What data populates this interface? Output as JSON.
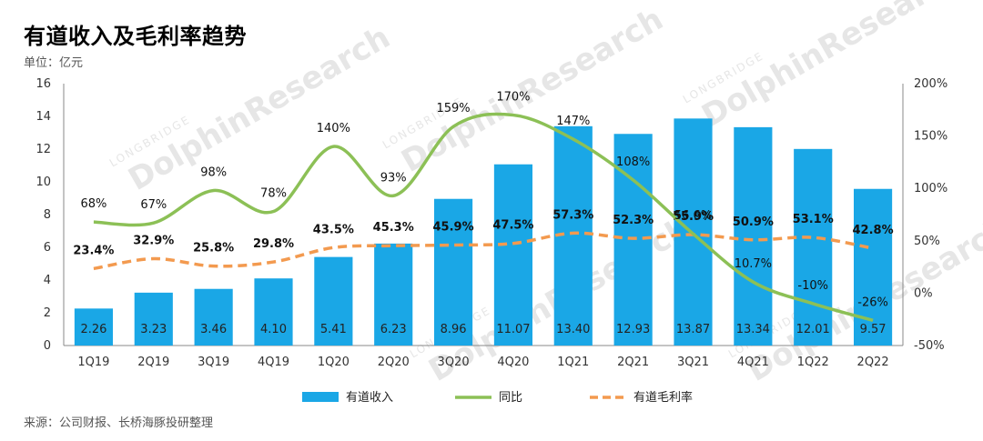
{
  "title": "有道收入及毛利率趋势",
  "unit_label": "单位：亿元",
  "source": "来源：公司财报、长桥海豚投研整理",
  "watermark": {
    "brand": "DolphinResearch",
    "sub": "LONGBRIDGE"
  },
  "colors": {
    "bar": "#1aa7e6",
    "yoy": "#8cc056",
    "gross_margin": "#f39a4f"
  },
  "chart_data": {
    "type": "bar",
    "title": "有道收入及毛利率趋势",
    "categories": [
      "1Q19",
      "2Q19",
      "3Q19",
      "4Q19",
      "1Q20",
      "2Q20",
      "3Q20",
      "4Q20",
      "1Q21",
      "2Q21",
      "3Q21",
      "4Q21",
      "1Q22",
      "2Q22"
    ],
    "left_axis": {
      "min": 0,
      "max": 16,
      "ticks": [
        "0",
        "2",
        "4",
        "6",
        "8",
        "10",
        "12",
        "14",
        "16"
      ]
    },
    "right_axis": {
      "min": -50,
      "max": 200,
      "ticks": [
        "-50%",
        "0%",
        "50%",
        "100%",
        "150%",
        "200%"
      ]
    },
    "series": [
      {
        "name": "有道收入",
        "type": "bar",
        "axis": "left",
        "values": [
          2.26,
          3.23,
          3.46,
          4.1,
          5.41,
          6.23,
          8.96,
          11.07,
          13.4,
          12.93,
          13.87,
          13.34,
          12.01,
          9.57
        ],
        "labels": [
          "2.26",
          "3.23",
          "3.46",
          "4.10",
          "5.41",
          "6.23",
          "8.96",
          "11.07",
          "13.40",
          "12.93",
          "13.87",
          "13.34",
          "12.01",
          "9.57"
        ]
      },
      {
        "name": "同比",
        "type": "line",
        "axis": "right",
        "values": [
          68,
          67,
          98,
          78,
          140,
          93,
          159,
          170,
          147,
          108,
          56.6,
          10.7,
          -10,
          -26
        ],
        "labels": [
          "68%",
          "67%",
          "98%",
          "78%",
          "140%",
          "93%",
          "159%",
          "170%",
          "147%",
          "108%",
          "56.6%",
          "10.7%",
          "-10%",
          "-26%"
        ]
      },
      {
        "name": "有道毛利率",
        "type": "line-dashed",
        "axis": "right",
        "values": [
          23.4,
          32.9,
          25.8,
          29.8,
          43.5,
          45.3,
          45.9,
          47.5,
          57.3,
          52.3,
          55.9,
          50.9,
          53.1,
          42.8
        ],
        "labels": [
          "23.4%",
          "32.9%",
          "25.8%",
          "29.8%",
          "43.5%",
          "45.3%",
          "45.9%",
          "47.5%",
          "57.3%",
          "52.3%",
          "55.9%",
          "50.9%",
          "53.1%",
          "42.8%"
        ]
      }
    ],
    "legend": [
      "有道收入",
      "同比",
      "有道毛利率"
    ],
    "legend_position": "bottom",
    "grid": false
  }
}
